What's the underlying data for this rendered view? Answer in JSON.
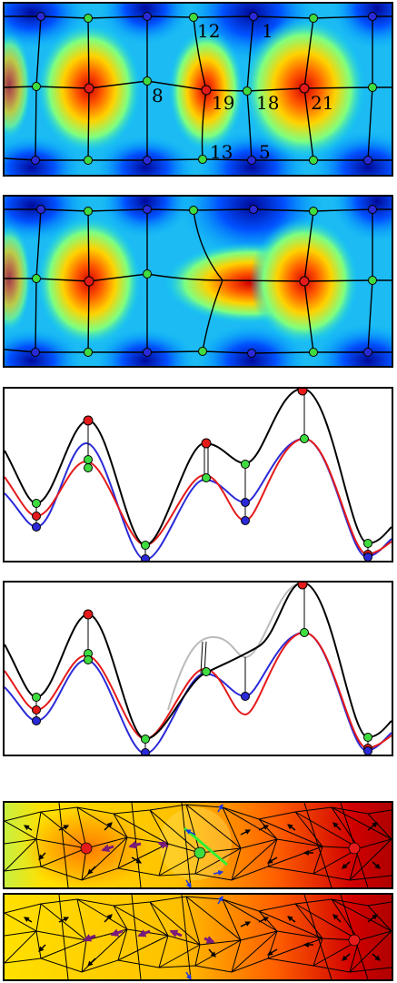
{
  "panel1": {
    "labels": [
      {
        "id": "label-12",
        "text": "12"
      },
      {
        "id": "label-1",
        "text": "1"
      },
      {
        "id": "label-8",
        "text": "8"
      },
      {
        "id": "label-19",
        "text": "19"
      },
      {
        "id": "label-18",
        "text": "18"
      },
      {
        "id": "label-21",
        "text": "21"
      },
      {
        "id": "label-13",
        "text": "13"
      },
      {
        "id": "label-5",
        "text": "5"
      }
    ]
  },
  "colors": {
    "max_node": "#e51a1a",
    "saddle_node": "#3fdc3f",
    "min_node": "#2a2ad8",
    "highlight_edge": "#33ee33",
    "gradient_arrow": "#7a1a7a",
    "blue_arrow": "#1a3ae0",
    "curve_black": "#000000",
    "curve_red": "#e51a1a",
    "curve_blue": "#2a2ad8",
    "curve_gray": "#bbbbbb"
  }
}
